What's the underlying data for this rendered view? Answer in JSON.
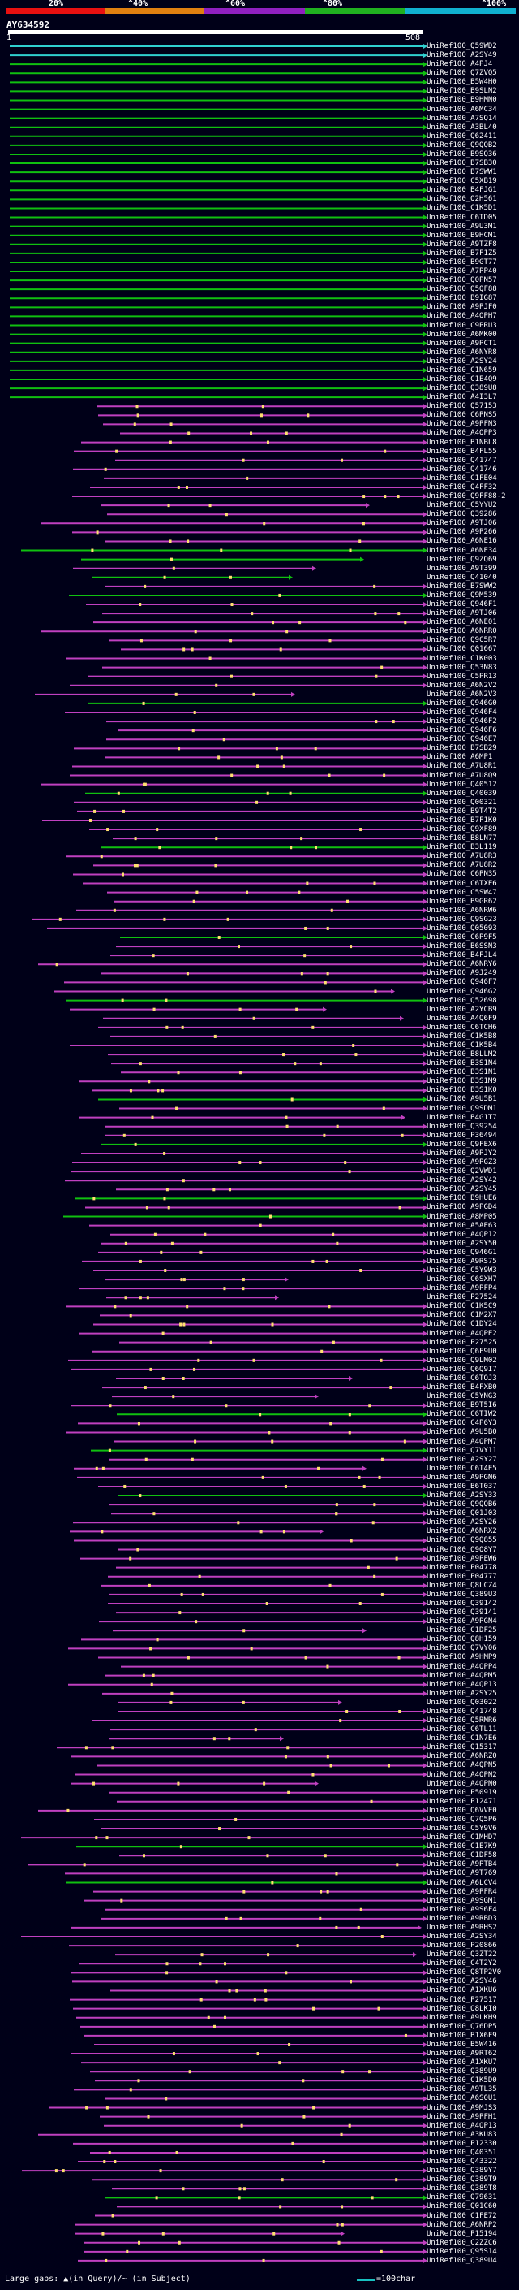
{
  "scale": {
    "ticks": [
      "20%",
      "^40%",
      "^60%",
      "^80%",
      "^100%"
    ],
    "band_colors": [
      "#e81010",
      "#e08010",
      "#9020c0",
      "#20b020",
      "#10b0d0"
    ]
  },
  "query": {
    "id": "AY634592",
    "start": "1",
    "end": "508"
  },
  "colors": {
    "green": "#10c010",
    "magenta": "#c040c0",
    "cyan": "#30d0d0",
    "gap": "#ffe070"
  },
  "hits": [
    "UniRef100_Q59WD2",
    "UniRef100_A2SY49",
    "UniRef100_A4PJ4",
    "UniRef100_Q7ZVQ5",
    "UniRef100_B5W4H0",
    "UniRef100_B9SLN2",
    "UniRef100_B9HMN0",
    "UniRef100_A6MC34",
    "UniRef100_A7SQ14",
    "UniRef100_A3BL40",
    "UniRef100_Q62411",
    "UniRef100_Q9QQB2",
    "UniRef100_B9SQ36",
    "UniRef100_B7SB30",
    "UniRef100_B7SWW1",
    "UniRef100_C5XB19",
    "UniRef100_B4FJG1",
    "UniRef100_Q2H561",
    "UniRef100_C1K5D1",
    "UniRef100_C6TD05",
    "UniRef100_A9U3M1",
    "UniRef100_B9HCM1",
    "UniRef100_A9TZF8",
    "UniRef100_B7F1Z5",
    "UniRef100_B9GT77",
    "UniRef100_A7PP40",
    "UniRef100_Q0PN57",
    "UniRef100_Q5QF88",
    "UniRef100_B9IG87",
    "UniRef100_A9PJF0",
    "UniRef100_A4QPH7",
    "UniRef100_C9PRU3",
    "UniRef100_A6MK00",
    "UniRef100_A9PCT1",
    "UniRef100_A6NYR8",
    "UniRef100_A2SY24",
    "UniRef100_C1N659",
    "UniRef100_C1E4Q9",
    "UniRef100_Q389U8",
    "UniRef100_A4I3L7",
    "UniRef100_Q57153",
    "UniRef100_C6PNS5",
    "UniRef100_A9PFN3",
    "UniRef100_A4QPP3",
    "UniRef100_B1NBL8",
    "UniRef100_B4FL55",
    "UniRef100_Q41747",
    "UniRef100_Q41746",
    "UniRef100_C1FE04",
    "UniRef100_Q4FF32",
    "UniRef100_Q9FF88-2",
    "UniRef100_C5YYU2",
    "UniRef100_Q39286",
    "UniRef100_A9TJ06",
    "UniRef100_A9P266",
    "UniRef100_A6NE16",
    "UniRef100_A6NE34",
    "UniRef100_Q9ZQ69",
    "UniRef100_A9T399",
    "UniRef100_Q41040",
    "UniRef100_B7SWW2",
    "UniRef100_Q9M539",
    "UniRef100_Q946F1",
    "UniRef100_A9TJ06",
    "UniRef100_A6NE01",
    "UniRef100_A6NRR0",
    "UniRef100_Q9C5R7",
    "UniRef100_Q01667",
    "UniRef100_C1K003",
    "UniRef100_Q53N83",
    "UniRef100_C5PR13",
    "UniRef100_A6N2V2",
    "UniRef100_A6N2V3",
    "UniRef100_Q946G0",
    "UniRef100_Q946F4",
    "UniRef100_Q946F2",
    "UniRef100_Q946F6",
    "UniRef100_Q946E7",
    "UniRef100_B7SB29",
    "UniRef100_A6MP1",
    "UniRef100_A7U8R1",
    "UniRef100_A7U8Q9",
    "UniRef100_Q40512",
    "UniRef100_Q40039",
    "UniRef100_Q00321",
    "UniRef100_B9T4T2",
    "UniRef100_B7F1K0",
    "UniRef100_Q9XF89",
    "UniRef100_B8LN77",
    "UniRef100_B3L119",
    "UniRef100_A7U8R3",
    "UniRef100_A7U8R2",
    "UniRef100_C6PN35",
    "UniRef100_C6TXE6",
    "UniRef100_C5SW47",
    "UniRef100_B9GR62",
    "UniRef100_A6NRW6",
    "UniRef100_Q9SG23",
    "UniRef100_Q05093",
    "UniRef100_C6P9F5",
    "UniRef100_B6SSN3",
    "UniRef100_B4FJL4",
    "UniRef100_A6NRY6",
    "UniRef100_A9J249",
    "UniRef100_Q946F7",
    "UniRef100_Q946G2",
    "UniRef100_Q52698",
    "UniRef100_A2YCB9",
    "UniRef100_A4Q6F9",
    "UniRef100_C6TCH6",
    "UniRef100_C1K5B8",
    "UniRef100_C1K5B4",
    "UniRef100_B8LLM2",
    "UniRef100_B3S1N4",
    "UniRef100_B3S1N1",
    "UniRef100_B3S1M9",
    "UniRef100_B3S1K0",
    "UniRef100_A9U5B1",
    "UniRef100_Q9SDM1",
    "UniRef100_B4G1T7",
    "UniRef100_Q39254",
    "UniRef100_P36494",
    "UniRef100_Q9FEX6",
    "UniRef100_A9PJY2",
    "UniRef100_A9PGZ3",
    "UniRef100_Q2VWD1",
    "UniRef100_A2SY42",
    "UniRef100_A2SY45",
    "UniRef100_B9HUE6",
    "UniRef100_A9PGD4",
    "UniRef100_A8MP05",
    "UniRef100_A5AE63",
    "UniRef100_A4QP12",
    "UniRef100_A2SY50",
    "UniRef100_Q946G1",
    "UniRef100_A9RS75",
    "UniRef100_C5Y9W3",
    "UniRef100_C6SXH7",
    "UniRef100_A9PFP4",
    "UniRef100_P27524",
    "UniRef100_C1K5C9",
    "UniRef100_C1M2X7",
    "UniRef100_C1DY24",
    "UniRef100_A4QPE2",
    "UniRef100_P27525",
    "UniRef100_Q6F9U0",
    "UniRef100_Q9LM02",
    "UniRef100_Q6Q9I7",
    "UniRef100_C6TOJ3",
    "UniRef100_B4FXB0",
    "UniRef100_C5YNG3",
    "UniRef100_B9T5I6",
    "UniRef100_C6TIW2",
    "UniRef100_C4P6Y3",
    "UniRef100_A9U5B0",
    "UniRef100_A4QPM7",
    "UniRef100_Q7VY11",
    "UniRef100_A2SY27",
    "UniRef100_C6T4E5",
    "UniRef100_A9PGN6",
    "UniRef100_B6T037",
    "UniRef100_A2SY33",
    "UniRef100_Q9QQB6",
    "UniRef100_Q01J03",
    "UniRef100_A2SY26",
    "UniRef100_A6NRX2",
    "UniRef100_Q9Q855",
    "UniRef100_Q9Q8Y7",
    "UniRef100_A9PEW6",
    "UniRef100_P04778",
    "UniRef100_P04777",
    "UniRef100_Q8LCZ4",
    "UniRef100_Q389U3",
    "UniRef100_Q39142",
    "UniRef100_Q39141",
    "UniRef100_A9PGN4",
    "UniRef100_C1DF25",
    "UniRef100_Q8H159",
    "UniRef100_Q7VY06",
    "UniRef100_A9HMP9",
    "UniRef100_A4QPP4",
    "UniRef100_A4QPM5",
    "UniRef100_A4QP13",
    "UniRef100_A2SY25",
    "UniRef100_Q03022",
    "UniRef100_Q41748",
    "UniRef100_Q5RMR6",
    "UniRef100_C6TL11",
    "UniRef100_C1N7E6",
    "UniRef100_Q15317",
    "UniRef100_A6NRZ0",
    "UniRef100_A4QPN5",
    "UniRef100_A4QPN2",
    "UniRef100_A4QPN0",
    "UniRef100_P50919",
    "UniRef100_P12471",
    "UniRef100_Q6VVE0",
    "UniRef100_Q7Q5P6",
    "UniRef100_C5Y9V6",
    "UniRef100_C1MHD7",
    "UniRef100_C1E7K9",
    "UniRef100_C1DF58",
    "UniRef100_A9PTB4",
    "UniRef100_A9T769",
    "UniRef100_A6LCV4",
    "UniRef100_A9PFR4",
    "UniRef100_A9SGM1",
    "UniRef100_A9S6F4",
    "UniRef100_A9RBD3",
    "UniRef100_A9RHS2",
    "UniRef100_A2SY34",
    "UniRef100_P20866",
    "UniRef100_Q3ZT22",
    "UniRef100_C4T2Y2",
    "UniRef100_Q8TP2V0",
    "UniRef100_A2SY46",
    "UniRef100_A1XKU6",
    "UniRef100_P27517",
    "UniRef100_Q8LKI0",
    "UniRef100_A9LKH9",
    "UniRef100_Q76DP5",
    "UniRef100_B1X6F9",
    "UniRef100_B5W416",
    "UniRef100_A9RT62",
    "UniRef100_A1XKU7",
    "UniRef100_Q389U9",
    "UniRef100_C1K5D0",
    "UniRef100_A9TL35",
    "UniRef100_A6S0U1",
    "UniRef100_A9MJS3",
    "UniRef100_A9PFH1",
    "UniRef100_A4QP13",
    "UniRef100_A3KU83",
    "UniRef100_P12330",
    "UniRef100_Q40351",
    "UniRef100_Q43322",
    "UniRef100_Q389Y7",
    "UniRef100_Q389T9",
    "UniRef100_Q389T8",
    "UniRef100_Q79631",
    "UniRef100_Q01C60",
    "UniRef100_C1FE72",
    "UniRef100_A6NRP2",
    "UniRef100_P15194",
    "UniRef100_C2ZZC6",
    "UniRef100_Q95S14",
    "UniRef100_Q389U4"
  ],
  "legend": {
    "text": "Large gaps: ▲(in Query)/~ (in Subject)",
    "line_text": "=100char"
  }
}
